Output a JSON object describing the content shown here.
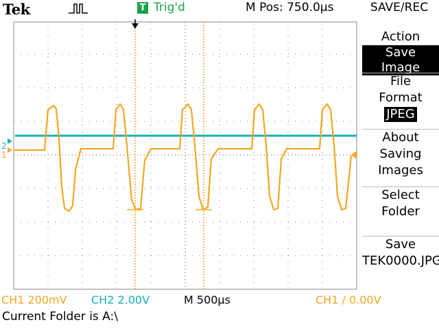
{
  "header": {
    "brand": "Tek",
    "trigger_badge": "T",
    "trigger_status": "Trig'd",
    "m_pos": "M Pos: 750.0µs",
    "menu_title": "SAVE/REC"
  },
  "menu": {
    "action_label": "Action",
    "action_value": "Save Image",
    "file_format_label_1": "File",
    "file_format_label_2": "Format",
    "file_format_value": "JPEG",
    "about_1": "About",
    "about_2": "Saving",
    "about_3": "Images",
    "select_1": "Select",
    "select_2": "Folder",
    "save_1": "Save",
    "save_2": "TEK0000.JPG"
  },
  "markers": {
    "ch1": "1",
    "ch2": "2"
  },
  "status": {
    "ch1_scale": "CH1  200mV",
    "ch2_scale": "CH2  2.00V",
    "timebase": "M 500µs",
    "trigger": "CH1 ∕ 0.00V"
  },
  "footer": {
    "folder": "Current Folder is A:\\"
  },
  "colors": {
    "ch1": "#f5a623",
    "ch2": "#17b0b8",
    "trigger": "#1aa34a"
  }
}
